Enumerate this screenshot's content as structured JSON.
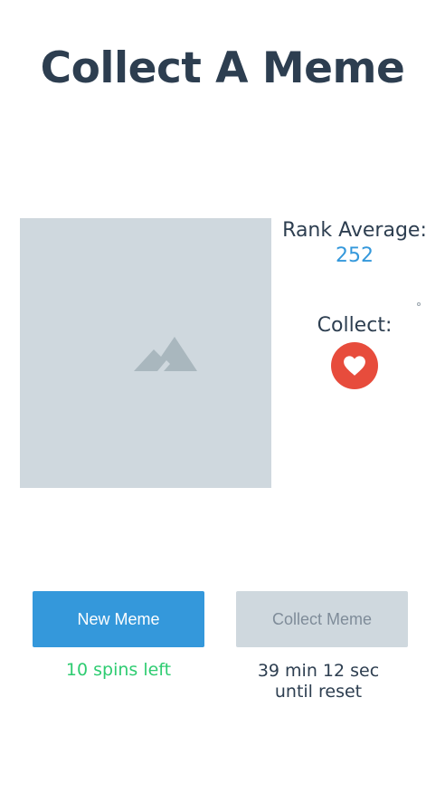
{
  "header": {
    "title": "Collect A Meme"
  },
  "meme": {
    "image_icon": "image-placeholder-icon"
  },
  "stats": {
    "rank_label": "Rank Average:",
    "rank_value": "252",
    "collect_label": "Collect:",
    "collect_icon": "heart-icon"
  },
  "actions": {
    "new_meme_label": "New Meme",
    "collect_meme_label": "Collect Meme",
    "spins_left": "10 spins left",
    "reset_line1": "39 min 12 sec",
    "reset_line2": "until reset"
  },
  "colors": {
    "primary": "#3498db",
    "accent_red": "#e74c3c",
    "success_green": "#2ecc71",
    "text_dark": "#2d3e50",
    "placeholder_gray": "#cfd8de"
  }
}
